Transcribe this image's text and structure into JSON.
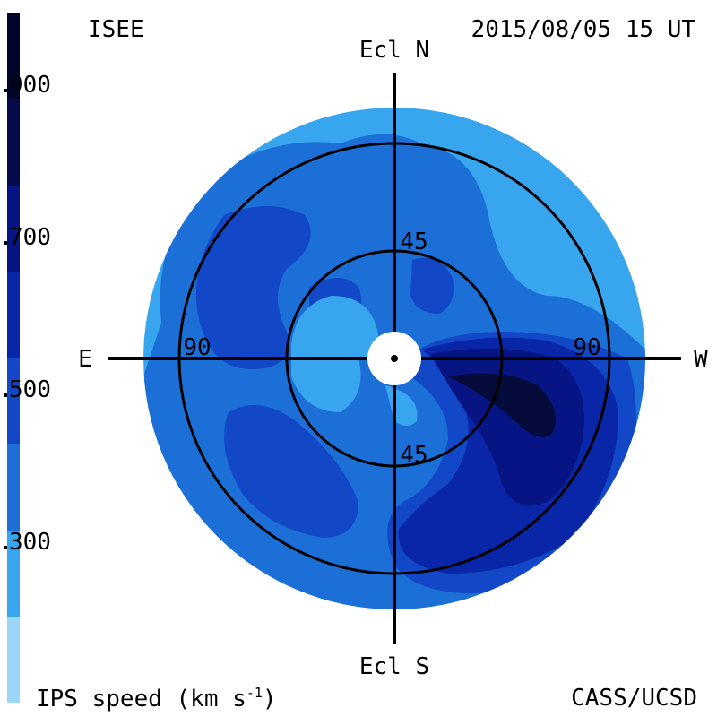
{
  "header": {
    "source": "ISEE",
    "timestamp": "2015/08/05 15 UT"
  },
  "footer": {
    "quantity_label": "IPS speed (km s",
    "quantity_exp": "-1",
    "quantity_close": ")",
    "credit": "CASS/UCSD"
  },
  "axes": {
    "north": "Ecl N",
    "south": "Ecl S",
    "east": "E",
    "west": "W",
    "ring_inner_label": "45",
    "ring_outer_label": "90"
  },
  "colorbar": {
    "tick_labels": [
      "900",
      "700",
      "500",
      "300"
    ],
    "colors": [
      "#99d6f7",
      "#38a6ee",
      "#1c6fd6",
      "#1248c8",
      "#0a26a8",
      "#061583",
      "#040a4a",
      "#02052a"
    ]
  },
  "map_colors": {
    "c300": "#38a6ee",
    "c400": "#1c6fd6",
    "c500": "#1248c8",
    "c600": "#0a26a8",
    "c700": "#061583",
    "c900": "#040a3a",
    "light": "#5cbcf2"
  }
}
